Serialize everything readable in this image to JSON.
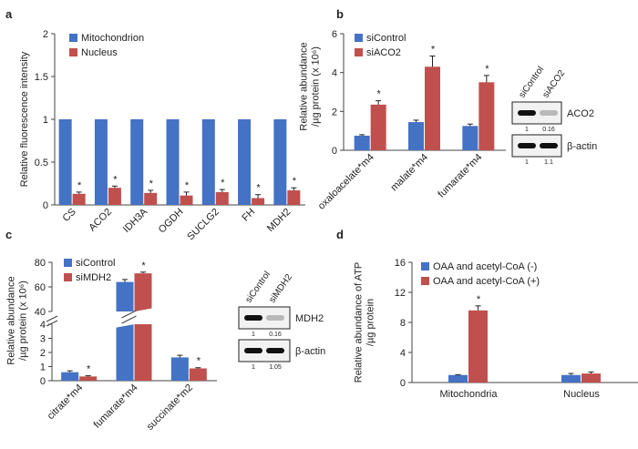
{
  "colors": {
    "blue": "#4472c4",
    "red": "#c0504d"
  },
  "chart_data": [
    {
      "panel": "a",
      "type": "bar",
      "ylabel": "Relative fluorescence intensity",
      "ylim": [
        0,
        2
      ],
      "yticks": [
        "0",
        "0.5",
        "1",
        "1.5",
        "2"
      ],
      "categories": [
        "CS",
        "ACO2",
        "IDH3A",
        "OGDH",
        "SUCLG2",
        "FH",
        "MDH2"
      ],
      "series": [
        {
          "name": "Mitochondrion",
          "values": [
            1,
            1,
            1,
            1,
            1,
            1,
            1
          ],
          "errors": [
            0,
            0,
            0,
            0,
            0,
            0,
            0
          ]
        },
        {
          "name": "Nucleus",
          "values": [
            0.13,
            0.2,
            0.14,
            0.11,
            0.15,
            0.08,
            0.17
          ],
          "errors": [
            0.02,
            0.02,
            0.03,
            0.04,
            0.03,
            0.04,
            0.03
          ]
        }
      ],
      "significance": [
        "*",
        "*",
        "*",
        "*",
        "*",
        "*",
        "*"
      ],
      "legend": "top-left"
    },
    {
      "panel": "b",
      "type": "bar",
      "ylabel": [
        "Relative abundance",
        "/µg protein (x 10⁶)"
      ],
      "ylim": [
        0,
        6
      ],
      "yticks": [
        "0",
        "2",
        "4",
        "6"
      ],
      "categories": [
        "oxaloacelate*m4",
        "malate*m4",
        "fumarate*m4"
      ],
      "series": [
        {
          "name": "siControl",
          "values": [
            0.75,
            1.45,
            1.25
          ],
          "errors": [
            0.05,
            0.1,
            0.1
          ]
        },
        {
          "name": "siACO2",
          "values": [
            2.35,
            4.3,
            3.5
          ],
          "errors": [
            0.2,
            0.55,
            0.35
          ]
        }
      ],
      "significance": [
        "*",
        "*",
        "*"
      ],
      "legend": "top-left",
      "blot": {
        "lanes": [
          "siControl",
          "siACO2"
        ],
        "rows": [
          {
            "label": "ACO2",
            "values": [
              "1",
              "0.16"
            ]
          },
          {
            "label": "β-actin",
            "values": [
              "1",
              "1.1"
            ]
          }
        ]
      }
    },
    {
      "panel": "c",
      "type": "bar",
      "axis_break": true,
      "ylabel": [
        "Relative abundance",
        "/µg protein (x 10⁶)"
      ],
      "ylim_lower": [
        0,
        4
      ],
      "ylim_upper": [
        40,
        80
      ],
      "yticks": [
        "0",
        "1",
        "2",
        "3",
        "4",
        "40",
        "60",
        "80"
      ],
      "categories": [
        "citrate*m4",
        "fumarate*m4",
        "succinate*m2"
      ],
      "series": [
        {
          "name": "siControl",
          "values": [
            0.6,
            64,
            1.65
          ],
          "errors": [
            0.1,
            2,
            0.15
          ]
        },
        {
          "name": "siMDH2",
          "values": [
            0.3,
            71,
            0.87
          ],
          "errors": [
            0.05,
            1,
            0.05
          ]
        }
      ],
      "significance": [
        "*",
        "*",
        "*"
      ],
      "legend": "top-left",
      "blot": {
        "lanes": [
          "siControl",
          "siMDH2"
        ],
        "rows": [
          {
            "label": "MDH2",
            "values": [
              "1",
              "0.16"
            ]
          },
          {
            "label": "β-actin",
            "values": [
              "1",
              "1.05"
            ]
          }
        ]
      }
    },
    {
      "panel": "d",
      "type": "bar",
      "ylabel": [
        "Relative abundance of ATP",
        "/µg protein"
      ],
      "ylim": [
        0,
        16
      ],
      "yticks": [
        "0",
        "4",
        "8",
        "12",
        "16"
      ],
      "categories": [
        "Mitochondria",
        "Nucleus"
      ],
      "series": [
        {
          "name": "OAA and acetyl-CoA (-)",
          "values": [
            1.0,
            1.0
          ],
          "errors": [
            0.05,
            0.2
          ]
        },
        {
          "name": "OAA and acetyl-CoA (+)",
          "values": [
            9.6,
            1.2
          ],
          "errors": [
            0.6,
            0.2
          ]
        }
      ],
      "significance": [
        "*",
        ""
      ],
      "legend": "top-left"
    }
  ],
  "panel_letters": [
    "a",
    "b",
    "c",
    "d"
  ]
}
